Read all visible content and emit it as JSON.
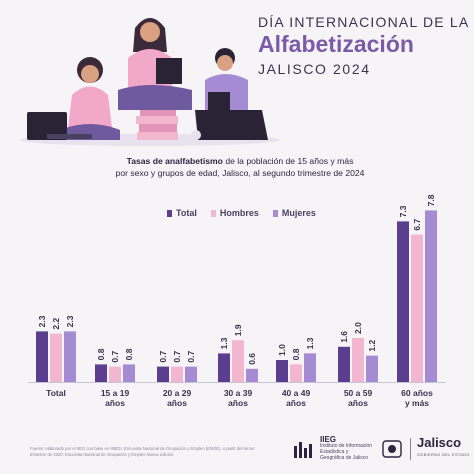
{
  "header": {
    "line1": "DÍA INTERNACIONAL DE LA",
    "line2": "Alfabetización",
    "line3": "JALISCO 2024"
  },
  "subtitle": {
    "bold": "Tasas de analfabetismo",
    "rest1": " de la población de 15 años y más",
    "line2": "por sexo y grupos de edad, Jalisco, al segundo trimestre de 2024"
  },
  "colors": {
    "total": "#5b3e8f",
    "hombres": "#f3b6d0",
    "mujeres": "#a48bd3",
    "bg": "#f7f4f8"
  },
  "chart_data": {
    "type": "bar",
    "categories": [
      [
        "Total"
      ],
      [
        "15 a 19",
        "años"
      ],
      [
        "20 a 29",
        "años"
      ],
      [
        "30 a 39",
        "años"
      ],
      [
        "40 a 49",
        "años"
      ],
      [
        "50 a 59",
        "años"
      ],
      [
        "60 años",
        "y más"
      ]
    ],
    "series": [
      {
        "name": "Total",
        "values": [
          2.3,
          0.8,
          0.7,
          1.3,
          1.0,
          1.6,
          7.3
        ],
        "labels": [
          "2.3",
          "0.8",
          "0.7",
          "1.3",
          "1.0",
          "1.6",
          "7.3"
        ]
      },
      {
        "name": "Hombres",
        "values": [
          2.2,
          0.7,
          0.7,
          1.9,
          0.8,
          2.0,
          6.7
        ],
        "labels": [
          "2.2",
          "0.7",
          "0.7",
          "1.9",
          "0.8",
          "2.0",
          "6.7"
        ]
      },
      {
        "name": "Mujeres",
        "values": [
          2.3,
          0.8,
          0.7,
          0.6,
          1.3,
          1.2,
          7.8
        ],
        "labels": [
          "2.3",
          "0.8",
          "0.7",
          "0.6",
          "1.3",
          "1.2",
          "7.8"
        ]
      }
    ],
    "ylim": [
      0,
      8
    ],
    "grid": false,
    "legend": "top"
  },
  "footer": {
    "note": "Fuente: elaborado por el IIEG con base en INEGI, Encuesta Nacional de Ocupación y Empleo (ENOE). A partir del tercer trimestre de 2020: Encuesta Nacional de Ocupación y Empleo Nueva edición.",
    "org_short": "IIEG",
    "org_long": "Instituto de Información Estadística y Geográfica de Jalisco",
    "gov": "Jalisco",
    "gov_sub": "GOBIERNO DEL ESTADO"
  }
}
